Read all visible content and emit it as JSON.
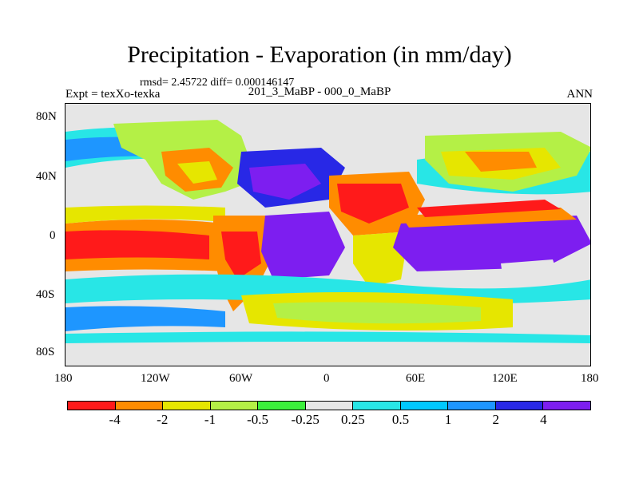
{
  "title": "Precipitation - Evaporation (in mm/day)",
  "stats_line": "rmsd= 2.45722 diff= 0.000146147",
  "experiment": "Expt = texXo-texka",
  "subtitle": "201_3_MaBP - 000_0_MaBP",
  "season": "ANN",
  "lat_ticks": [
    "80N",
    "40N",
    "0",
    "40S",
    "80S"
  ],
  "lon_ticks": [
    "180",
    "120W",
    "60W",
    "0",
    "60E",
    "120E",
    "180"
  ],
  "colorbar": {
    "colors": [
      "#ff1a1a",
      "#ff8c00",
      "#e6e600",
      "#b4f046",
      "#3cf03c",
      "#e6e6e6",
      "#28e6e6",
      "#00c8ff",
      "#1e96ff",
      "#2828e6",
      "#7d1ef0"
    ],
    "labels": [
      "-4",
      "-2",
      "-1",
      "-0.5",
      "-0.25",
      "0.25",
      "0.5",
      "1",
      "2",
      "4"
    ]
  }
}
